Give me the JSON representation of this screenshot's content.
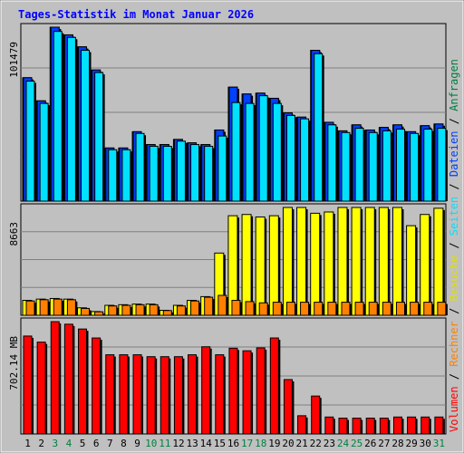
{
  "title": "Tages-Statistik im Monat Januar 2026",
  "colors": {
    "background": "#c0c0c0",
    "frame": "#000000",
    "title": "#0000ff",
    "hits": "#008040",
    "files": "#0040ff",
    "pages": "#00e0ff",
    "visits": "#ffff00",
    "sites": "#ff8000",
    "kbytes": "#ff0000",
    "weekend_day_label": "#008040"
  },
  "right_legend": {
    "items": [
      {
        "label": "Volumen",
        "color": "#ff0000"
      },
      {
        "label": "Rechner",
        "color": "#ff8000"
      },
      {
        "label": "Besuche",
        "color": "#e0e000"
      },
      {
        "label": "Seiten",
        "color": "#00e0ff"
      },
      {
        "label": "Dateien",
        "color": "#0040ff"
      },
      {
        "label": "Anfragen",
        "color": "#008040"
      }
    ],
    "separator": " / "
  },
  "chart_data": [
    {
      "type": "bar",
      "panel": "hits-files-pages",
      "ylabel": "101479",
      "ymax": 101479,
      "x": [
        "1",
        "2",
        "3",
        "4",
        "5",
        "6",
        "7",
        "8",
        "9",
        "10",
        "11",
        "12",
        "13",
        "14",
        "15",
        "16",
        "17",
        "18",
        "19",
        "20",
        "21",
        "22",
        "23",
        "24",
        "25",
        "26",
        "27",
        "28",
        "29",
        "30",
        "31"
      ],
      "weekend_days": [
        "3",
        "4",
        "10",
        "11",
        "17",
        "18",
        "24",
        "25",
        "31"
      ],
      "series": [
        {
          "name": "Anfragen",
          "values": [
            72000,
            58500,
            101479,
            97000,
            90000,
            76500,
            31000,
            31000,
            40500,
            33000,
            33000,
            36000,
            34000,
            33000,
            41500,
            66500,
            62500,
            63000,
            60000,
            51500,
            49000,
            88000,
            46000,
            41000,
            44500,
            41500,
            43000,
            44500,
            40500,
            44000,
            45000
          ]
        },
        {
          "name": "Dateien",
          "values": [
            72000,
            58500,
            101479,
            97000,
            90000,
            76500,
            31000,
            31000,
            40500,
            33000,
            33000,
            36000,
            34000,
            33000,
            41500,
            66500,
            62500,
            63000,
            60000,
            51500,
            49000,
            88000,
            46000,
            41000,
            44500,
            41500,
            43000,
            44500,
            40500,
            44000,
            45000
          ]
        },
        {
          "name": "Seiten",
          "values": [
            70000,
            57000,
            99000,
            95500,
            88000,
            75000,
            30000,
            30000,
            39500,
            32000,
            32000,
            35000,
            33000,
            32000,
            38000,
            57500,
            57000,
            61500,
            57000,
            50000,
            48000,
            86000,
            44500,
            40000,
            42500,
            40000,
            41000,
            42000,
            39500,
            42000,
            42500
          ]
        }
      ]
    },
    {
      "type": "bar",
      "panel": "visits-sites",
      "ylabel": "8663",
      "ymax": 8663,
      "x": [
        "1",
        "2",
        "3",
        "4",
        "5",
        "6",
        "7",
        "8",
        "9",
        "10",
        "11",
        "12",
        "13",
        "14",
        "15",
        "16",
        "17",
        "18",
        "19",
        "20",
        "21",
        "22",
        "23",
        "24",
        "25",
        "26",
        "27",
        "28",
        "29",
        "30",
        "31"
      ],
      "series": [
        {
          "name": "Besuche",
          "values": [
            1200,
            1300,
            1350,
            1300,
            600,
            300,
            800,
            850,
            900,
            900,
            400,
            800,
            1200,
            1500,
            5000,
            8000,
            8100,
            7900,
            8000,
            8663,
            8663,
            8200,
            8300,
            8663,
            8663,
            8663,
            8663,
            8663,
            7200,
            8100,
            8600
          ]
        },
        {
          "name": "Rechner",
          "values": [
            1150,
            1250,
            1300,
            1250,
            550,
            280,
            750,
            800,
            850,
            850,
            380,
            750,
            1150,
            1450,
            1600,
            1200,
            1100,
            1000,
            1050,
            1050,
            1050,
            1050,
            1050,
            1050,
            1050,
            1050,
            1050,
            1050,
            1050,
            1050,
            1050
          ]
        }
      ]
    },
    {
      "type": "bar",
      "panel": "volume",
      "ylabel": "702.14 MB",
      "ymax": 702.14,
      "x": [
        "1",
        "2",
        "3",
        "4",
        "5",
        "6",
        "7",
        "8",
        "9",
        "10",
        "11",
        "12",
        "13",
        "14",
        "15",
        "16",
        "17",
        "18",
        "19",
        "20",
        "21",
        "22",
        "23",
        "24",
        "25",
        "26",
        "27",
        "28",
        "29",
        "30",
        "31"
      ],
      "series": [
        {
          "name": "Volumen",
          "values": [
            612,
            574,
            702,
            686,
            656,
            600,
            495,
            495,
            495,
            483,
            483,
            483,
            495,
            545,
            495,
            536,
            520,
            538,
            600,
            340,
            114,
            237,
            106,
            99,
            99,
            99,
            99,
            106,
            106,
            106,
            106
          ]
        }
      ]
    }
  ]
}
